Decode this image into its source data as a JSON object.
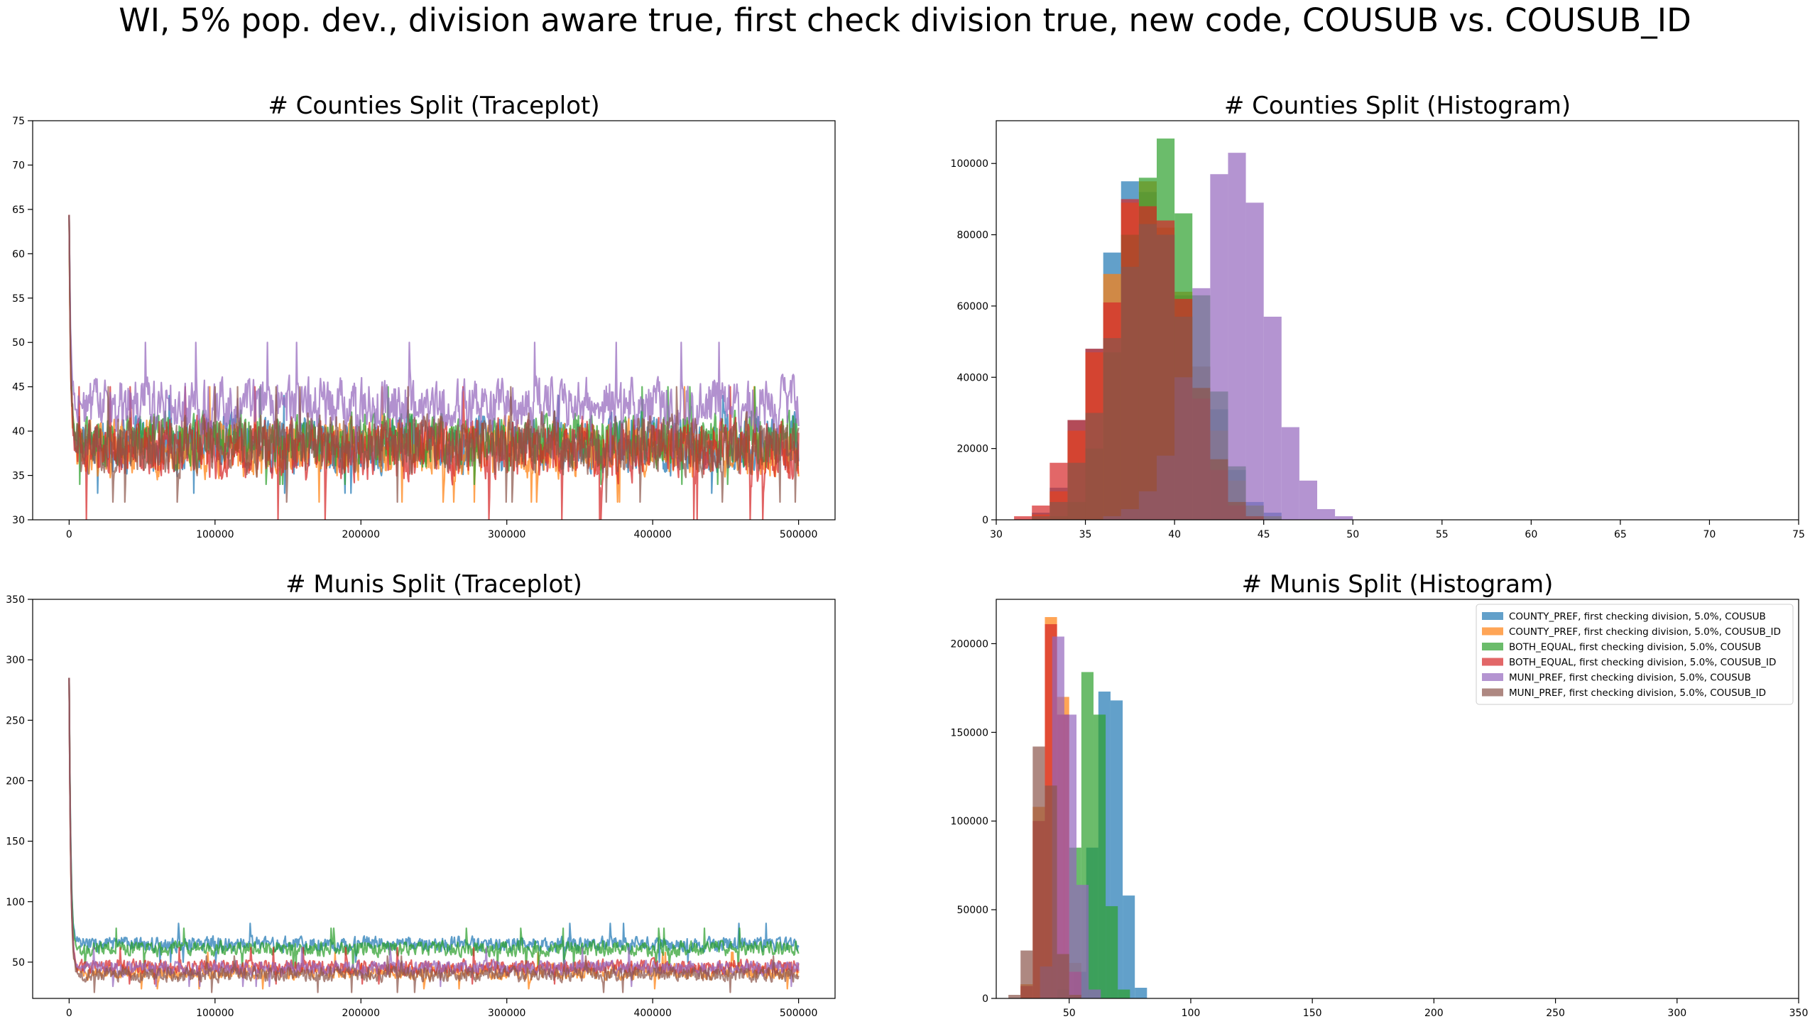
{
  "figure": {
    "title": "WI, 5% pop. dev., division aware true, first check division true, new code, COUSUB vs. COUSUB_ID"
  },
  "series_names": [
    "COUNTY_PREF, first checking division, 5.0%, COUSUB",
    "COUNTY_PREF, first checking division, 5.0%, COUSUB_ID",
    "BOTH_EQUAL, first checking division, 5.0%, COUSUB",
    "BOTH_EQUAL, first checking division, 5.0%, COUSUB_ID",
    "MUNI_PREF, first checking division, 5.0%, COUSUB",
    "MUNI_PREF, first checking division, 5.0%, COUSUB_ID"
  ],
  "colors": [
    "#1f77b4",
    "#ff7f0e",
    "#2ca02c",
    "#d62728",
    "#9467bd",
    "#8c564b"
  ],
  "chart_data": [
    {
      "id": "counties-trace",
      "type": "line",
      "title": "# Counties Split (Traceplot)",
      "xlim": [
        -25000,
        525000
      ],
      "ylim": [
        30,
        75
      ],
      "xticks": [
        0,
        100000,
        200000,
        300000,
        400000,
        500000
      ],
      "yticks": [
        30,
        35,
        40,
        45,
        50,
        55,
        60,
        65,
        70,
        75
      ],
      "x_range": [
        0,
        500000
      ],
      "start_value": 64,
      "series_stats": [
        {
          "mean": 38.5,
          "spread": 2.6,
          "min": 33,
          "max": 44
        },
        {
          "mean": 38.0,
          "spread": 2.6,
          "min": 32,
          "max": 45
        },
        {
          "mean": 39.0,
          "spread": 2.4,
          "min": 34,
          "max": 45
        },
        {
          "mean": 38.0,
          "spread": 2.8,
          "min": 30,
          "max": 45
        },
        {
          "mean": 43.0,
          "spread": 2.4,
          "min": 37,
          "max": 50
        },
        {
          "mean": 38.5,
          "spread": 2.6,
          "min": 32,
          "max": 45
        }
      ]
    },
    {
      "id": "counties-hist",
      "type": "bar",
      "title": "# Counties Split (Histogram)",
      "xlim": [
        30,
        75
      ],
      "ylim": [
        0,
        112000
      ],
      "xticks": [
        30,
        35,
        40,
        45,
        50,
        55,
        60,
        65,
        70,
        75
      ],
      "yticks": [
        0,
        20000,
        40000,
        60000,
        80000,
        100000
      ],
      "bin_start": 31,
      "bin_width": 1,
      "series": [
        {
          "counts": [
            0,
            2000,
            9000,
            28000,
            48000,
            75000,
            95000,
            92000,
            80000,
            63000,
            43000,
            31000,
            14000,
            5000,
            2000
          ]
        },
        {
          "counts": [
            0,
            1500,
            8000,
            25000,
            47000,
            69000,
            89000,
            95000,
            82000,
            64000,
            43000,
            25000,
            11000,
            4000,
            1000
          ]
        },
        {
          "counts": [
            0,
            0,
            1000,
            5000,
            20000,
            47000,
            80000,
            96000,
            107000,
            86000,
            63000,
            36000,
            15000,
            4000,
            1000
          ]
        },
        {
          "counts": [
            1000,
            4000,
            16000,
            28000,
            48000,
            61000,
            90000,
            88000,
            84000,
            62000,
            34000,
            14000,
            4000,
            1000,
            0
          ]
        },
        {
          "counts": [
            0,
            0,
            0,
            0,
            0,
            1000,
            3000,
            8000,
            18000,
            40000,
            65000,
            97000,
            103000,
            89000,
            57000,
            26000,
            11000,
            3000,
            1000
          ]
        },
        {
          "counts": [
            0,
            1000,
            5000,
            16000,
            30000,
            51000,
            71000,
            83000,
            80000,
            57000,
            37000,
            17000,
            5000,
            1000,
            0
          ]
        }
      ]
    },
    {
      "id": "munis-trace",
      "type": "line",
      "title": "# Munis Split (Traceplot)",
      "xlim": [
        -25000,
        525000
      ],
      "ylim": [
        20,
        350
      ],
      "xticks": [
        0,
        100000,
        200000,
        300000,
        400000,
        500000
      ],
      "yticks": [
        50,
        100,
        150,
        200,
        250,
        300,
        350
      ],
      "x_range": [
        0,
        500000
      ],
      "start_value": 284,
      "series_stats": [
        {
          "mean": 65,
          "spread": 5,
          "min": 50,
          "max": 82
        },
        {
          "mean": 42,
          "spread": 5,
          "min": 28,
          "max": 58
        },
        {
          "mean": 61,
          "spread": 5,
          "min": 45,
          "max": 78
        },
        {
          "mean": 46,
          "spread": 5,
          "min": 32,
          "max": 62
        },
        {
          "mean": 45,
          "spread": 5,
          "min": 30,
          "max": 62
        },
        {
          "mean": 40,
          "spread": 5,
          "min": 25,
          "max": 55
        }
      ]
    },
    {
      "id": "munis-hist",
      "type": "bar",
      "title": "# Munis Split (Histogram)",
      "xlim": [
        20,
        350
      ],
      "ylim": [
        0,
        225000
      ],
      "xticks": [
        50,
        100,
        150,
        200,
        250,
        300,
        350
      ],
      "yticks": [
        0,
        50000,
        100000,
        150000,
        200000
      ],
      "show_legend": true,
      "series": [
        {
          "bin_start": 52,
          "bin_width": 5,
          "counts": [
            15000,
            85000,
            173000,
            168000,
            58000,
            6000
          ]
        },
        {
          "bin_start": 30,
          "bin_width": 5,
          "counts": [
            8000,
            108000,
            215000,
            170000,
            20000
          ]
        },
        {
          "bin_start": 45,
          "bin_width": 5,
          "counts": [
            5000,
            85000,
            184000,
            160000,
            52000,
            5000
          ]
        },
        {
          "bin_start": 30,
          "bin_width": 5,
          "counts": [
            7000,
            100000,
            211000,
            160000,
            15000
          ]
        },
        {
          "bin_start": 38,
          "bin_width": 5,
          "counts": [
            18000,
            204000,
            160000,
            64000,
            5000
          ]
        },
        {
          "bin_start": 25,
          "bin_width": 5,
          "counts": [
            2000,
            27000,
            142000,
            120000,
            25000,
            2000
          ]
        }
      ]
    }
  ]
}
